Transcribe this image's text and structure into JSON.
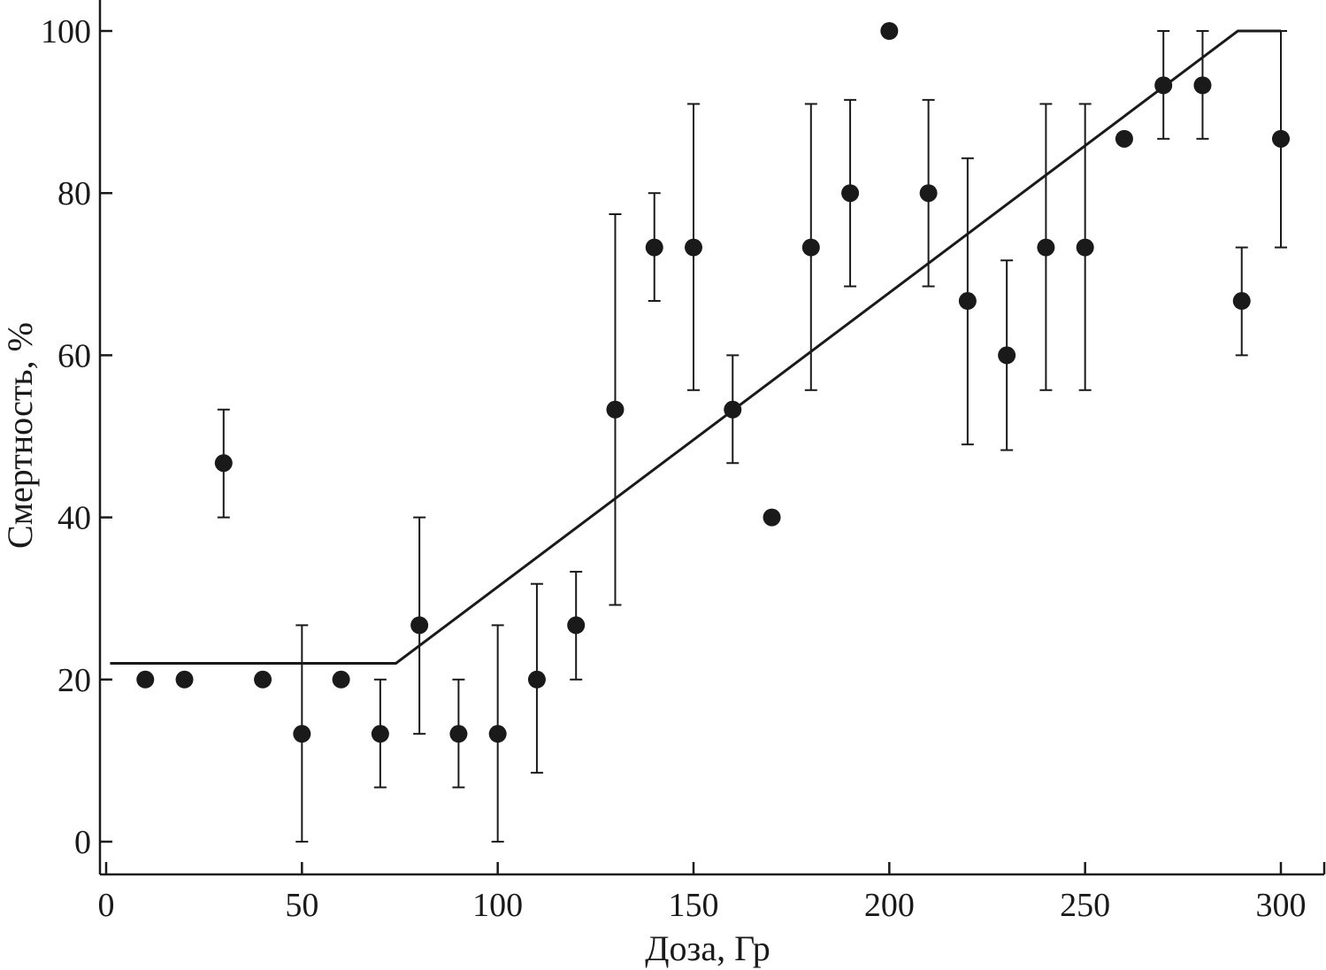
{
  "chart_data": {
    "type": "scatter",
    "title": "",
    "xlabel": "Доза, Гр",
    "ylabel": "Смертность, %",
    "xlim": [
      0,
      310
    ],
    "ylim": [
      -4,
      104
    ],
    "x_ticks": [
      0,
      50,
      100,
      150,
      200,
      250,
      300
    ],
    "y_ticks": [
      0,
      20,
      40,
      60,
      80,
      100
    ],
    "grid": false,
    "legend": "none",
    "marker_color": "#1a1a1a",
    "points": [
      {
        "x": 10,
        "y": 20
      },
      {
        "x": 20,
        "y": 20
      },
      {
        "x": 30,
        "y": 46.7,
        "err_low": 40,
        "err_high": 53.3
      },
      {
        "x": 40,
        "y": 20
      },
      {
        "x": 50,
        "y": 13.3,
        "err_low": 0,
        "err_high": 26.7
      },
      {
        "x": 60,
        "y": 20
      },
      {
        "x": 70,
        "y": 13.3,
        "err_low": 6.7,
        "err_high": 20
      },
      {
        "x": 80,
        "y": 26.7,
        "err_low": 13.3,
        "err_high": 40
      },
      {
        "x": 90,
        "y": 13.3,
        "err_low": 6.7,
        "err_high": 20
      },
      {
        "x": 100,
        "y": 13.3,
        "err_low": 0,
        "err_high": 26.7
      },
      {
        "x": 110,
        "y": 20,
        "err_low": 8.5,
        "err_high": 31.8
      },
      {
        "x": 120,
        "y": 26.7,
        "err_low": 20,
        "err_high": 33.3
      },
      {
        "x": 130,
        "y": 53.3,
        "err_low": 29.2,
        "err_high": 77.4
      },
      {
        "x": 140,
        "y": 73.3,
        "err_low": 66.7,
        "err_high": 80
      },
      {
        "x": 150,
        "y": 73.3,
        "err_low": 55.7,
        "err_high": 91
      },
      {
        "x": 160,
        "y": 53.3,
        "err_low": 46.7,
        "err_high": 60
      },
      {
        "x": 170,
        "y": 40
      },
      {
        "x": 180,
        "y": 73.3,
        "err_low": 55.7,
        "err_high": 91
      },
      {
        "x": 190,
        "y": 80,
        "err_low": 68.5,
        "err_high": 91.5
      },
      {
        "x": 200,
        "y": 100
      },
      {
        "x": 210,
        "y": 80,
        "err_low": 68.5,
        "err_high": 91.5
      },
      {
        "x": 220,
        "y": 66.7,
        "err_low": 49,
        "err_high": 84.3
      },
      {
        "x": 230,
        "y": 60,
        "err_low": 48.3,
        "err_high": 71.7
      },
      {
        "x": 240,
        "y": 73.3,
        "err_low": 55.7,
        "err_high": 91
      },
      {
        "x": 250,
        "y": 73.3,
        "err_low": 55.7,
        "err_high": 91
      },
      {
        "x": 260,
        "y": 86.7
      },
      {
        "x": 270,
        "y": 93.3,
        "err_low": 86.7,
        "err_high": 100
      },
      {
        "x": 280,
        "y": 93.3,
        "err_low": 86.7,
        "err_high": 100
      },
      {
        "x": 290,
        "y": 66.7,
        "err_low": 60,
        "err_high": 73.3
      },
      {
        "x": 300,
        "y": 86.7,
        "err_low": 73.3,
        "err_high": 100
      }
    ],
    "fit_line": {
      "x": [
        1,
        74,
        289,
        300
      ],
      "y": [
        22,
        22,
        100,
        100
      ]
    }
  }
}
